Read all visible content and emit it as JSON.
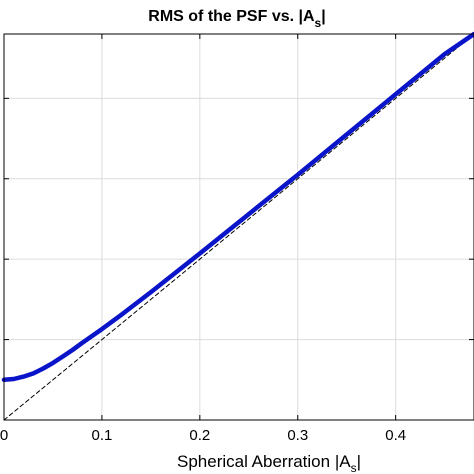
{
  "chart_data": {
    "type": "line",
    "title": "RMS of the PSF vs. |A",
    "title_sub": "s",
    "title_end": "|",
    "xlabel": "Spherical Aberration |A",
    "xlabel_sub": "s",
    "xlabel_end": "|",
    "xlim": [
      0,
      0.48
    ],
    "ylim": [
      0,
      0.48
    ],
    "xticks": [
      0,
      0.1,
      0.2,
      0.3,
      0.4
    ],
    "xtick_labels": [
      "0",
      "0.1",
      "0.2",
      "0.3",
      "0.4"
    ],
    "yticks": [
      0.1,
      0.2,
      0.3,
      0.4
    ],
    "grid": true,
    "series": [
      {
        "style": "solid",
        "color": "#0a14c8",
        "x": [
          0,
          0.01,
          0.02,
          0.03,
          0.04,
          0.05,
          0.06,
          0.07,
          0.08,
          0.1,
          0.12,
          0.15,
          0.2,
          0.25,
          0.3,
          0.35,
          0.4,
          0.45,
          0.48
        ],
        "y": [
          0.05,
          0.051,
          0.054,
          0.058,
          0.064,
          0.071,
          0.079,
          0.087,
          0.096,
          0.113,
          0.131,
          0.159,
          0.207,
          0.256,
          0.305,
          0.355,
          0.405,
          0.455,
          0.485
        ]
      },
      {
        "style": "dashed",
        "color": "#000000",
        "x": [
          0,
          0.48
        ],
        "y": [
          0,
          0.48
        ]
      }
    ]
  }
}
